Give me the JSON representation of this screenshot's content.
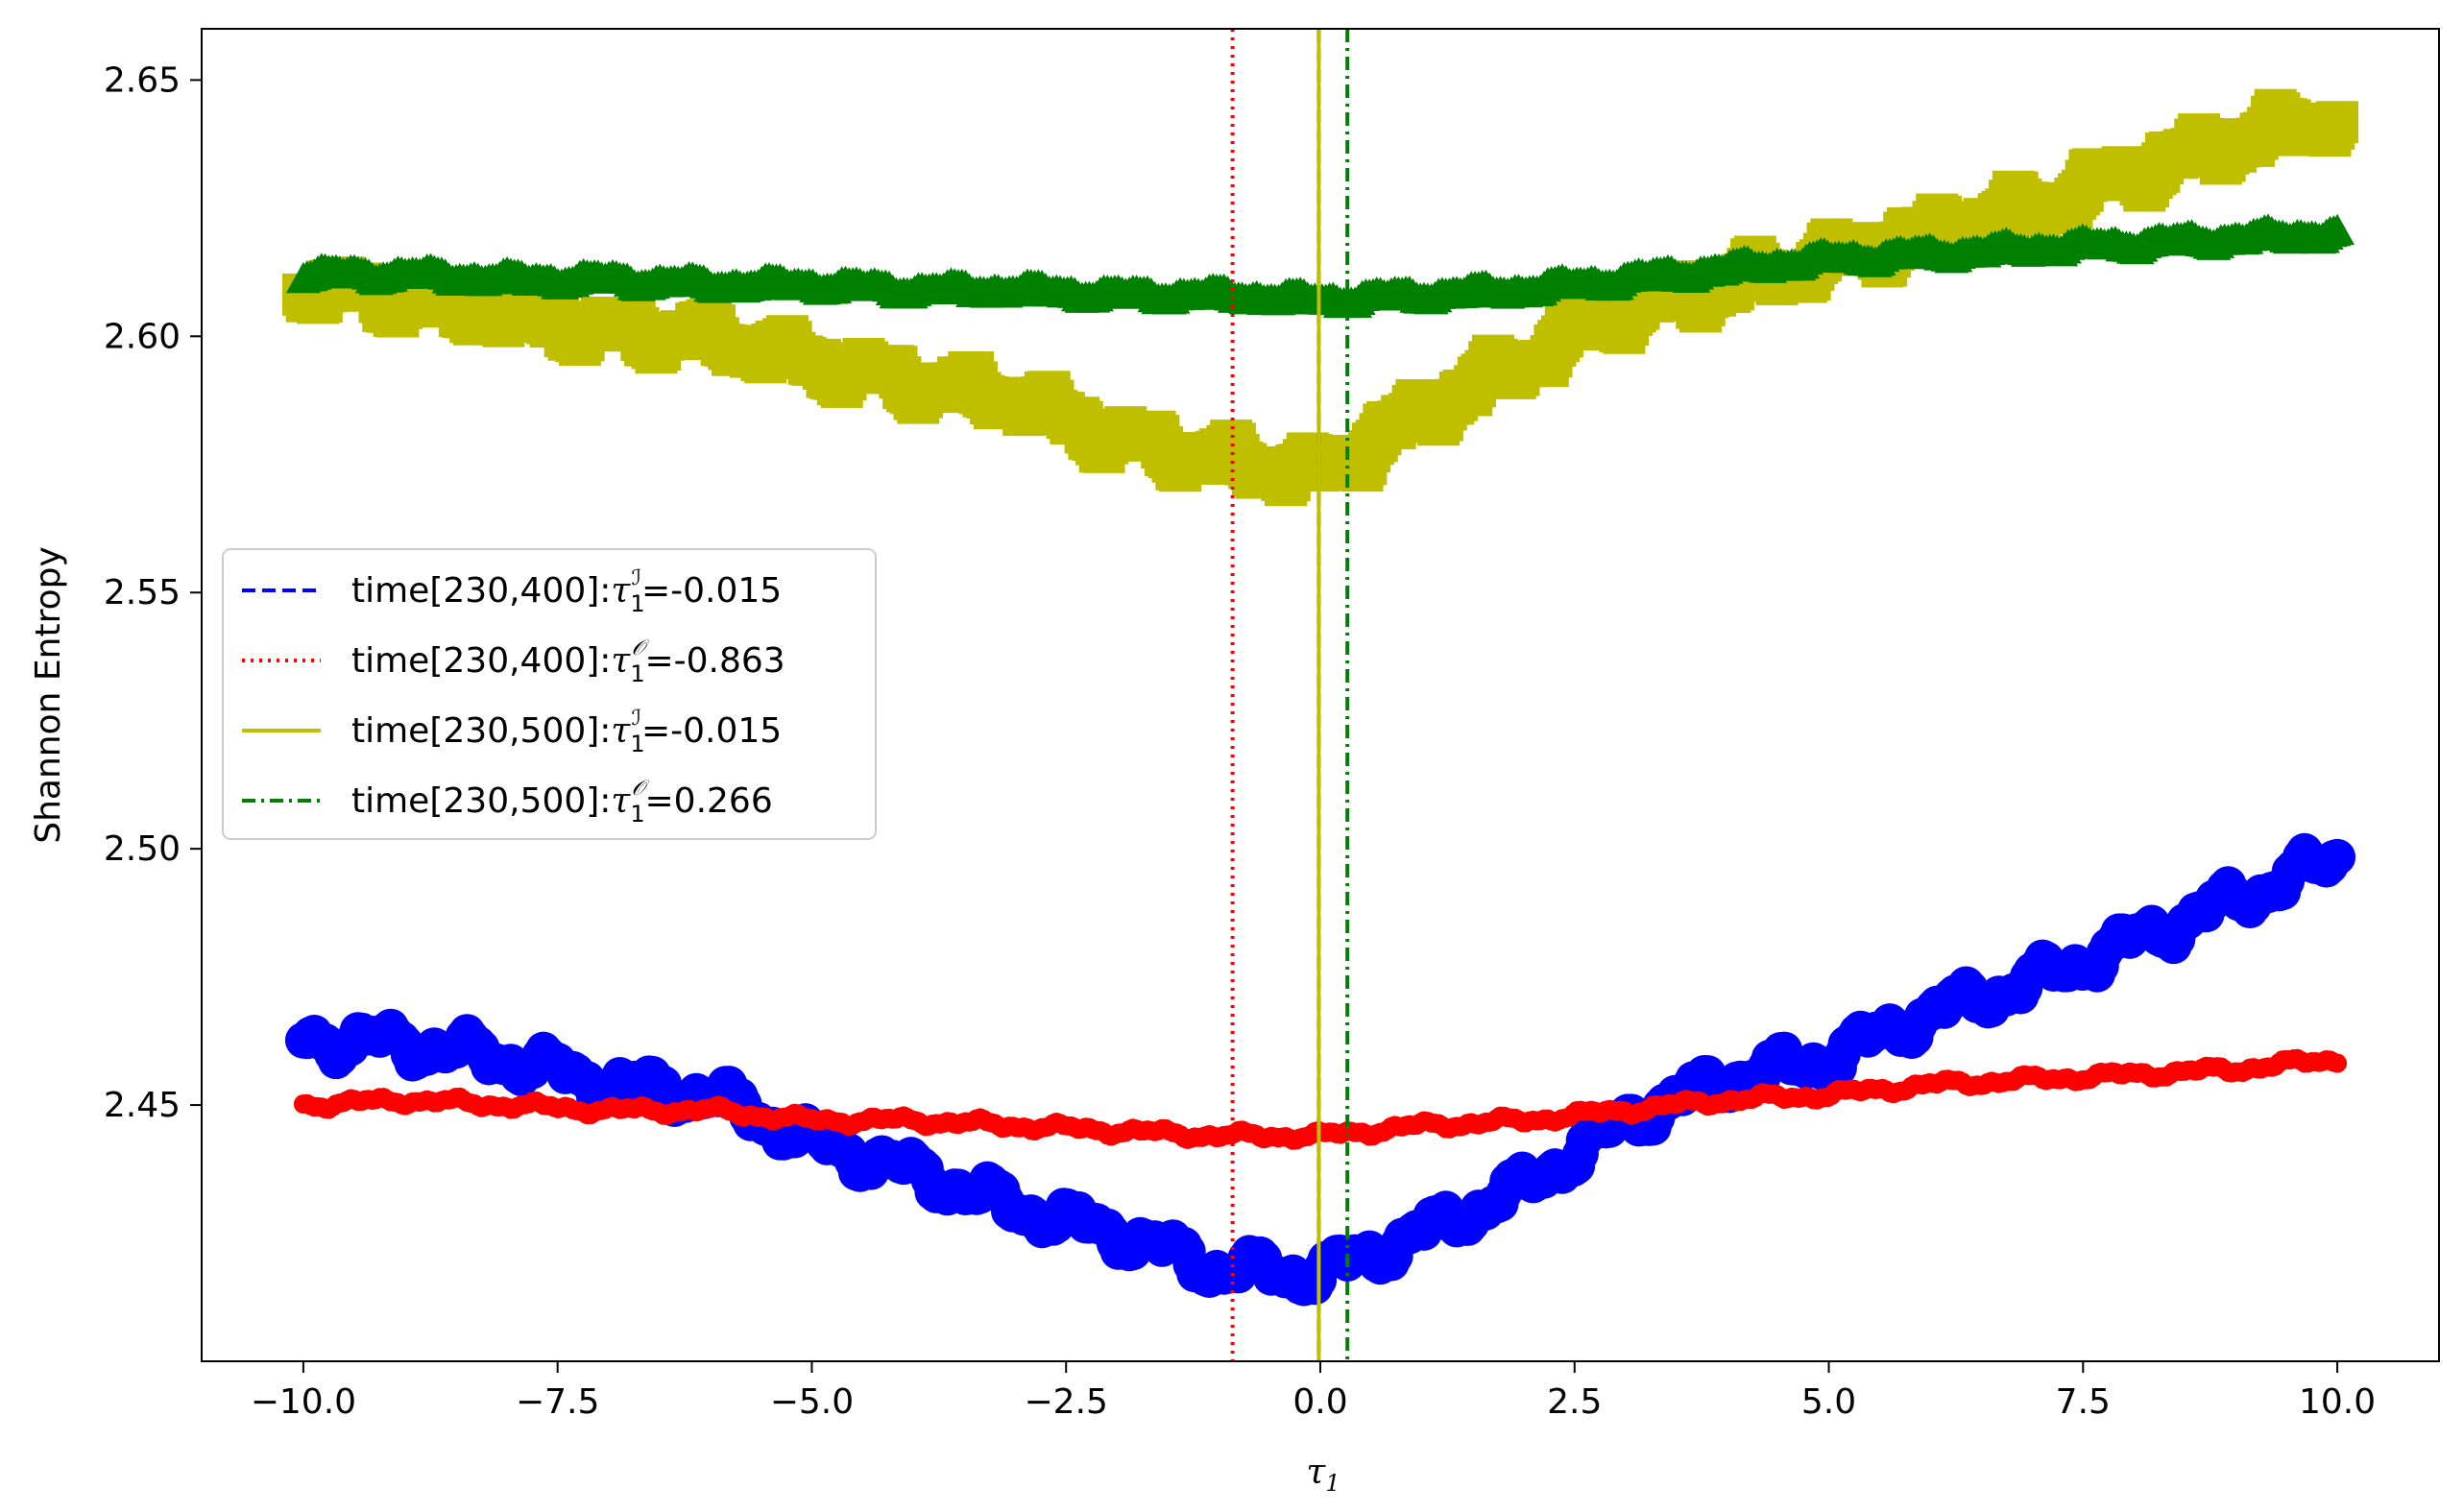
{
  "chart_data": {
    "type": "scatter",
    "title": "",
    "xlabel": "τ",
    "xlabel_sub": "1",
    "ylabel": "Shannon Entropy",
    "xlim": [
      -11.0,
      11.0
    ],
    "ylim": [
      2.4,
      2.66
    ],
    "xticks": [
      -10.0,
      -7.5,
      -5.0,
      -2.5,
      0.0,
      2.5,
      5.0,
      7.5,
      10.0
    ],
    "xtick_labels": [
      "−10.0",
      "−7.5",
      "−5.0",
      "−2.5",
      "0.0",
      "2.5",
      "5.0",
      "7.5",
      "10.0"
    ],
    "yticks": [
      2.45,
      2.5,
      2.55,
      2.6,
      2.65
    ],
    "ytick_labels": [
      "2.45",
      "2.50",
      "2.55",
      "2.60",
      "2.65"
    ],
    "grid": false,
    "legend_position": "center-left",
    "series": [
      {
        "name": "blue-circles",
        "marker": "circle",
        "color": "#0000ff",
        "x": [
          -10,
          -9,
          -8,
          -7,
          -6,
          -5,
          -4,
          -3,
          -2,
          -1,
          0,
          1,
          2,
          3,
          4,
          5,
          6,
          7,
          8,
          9,
          10
        ],
        "values": [
          2.463,
          2.462,
          2.459,
          2.454,
          2.452,
          2.443,
          2.437,
          2.43,
          2.425,
          2.418,
          2.417,
          2.425,
          2.434,
          2.447,
          2.455,
          2.459,
          2.468,
          2.474,
          2.482,
          2.49,
          2.498
        ]
      },
      {
        "name": "red-circles",
        "marker": "circle",
        "color": "#ff0000",
        "x": [
          -10,
          -9,
          -8,
          -7,
          -6,
          -5,
          -4,
          -3,
          -2,
          -1,
          0,
          1,
          2,
          3,
          4,
          5,
          6,
          7,
          8,
          9,
          10
        ],
        "values": [
          2.45,
          2.451,
          2.45,
          2.449,
          2.449,
          2.447,
          2.447,
          2.446,
          2.445,
          2.444,
          2.444,
          2.446,
          2.447,
          2.449,
          2.451,
          2.452,
          2.454,
          2.455,
          2.456,
          2.457,
          2.459
        ]
      },
      {
        "name": "yellow-squares",
        "marker": "square",
        "color": "#bfbf00",
        "x": [
          -10,
          -9,
          -8,
          -7,
          -6,
          -5,
          -4,
          -3,
          -2,
          -1,
          0,
          1,
          2,
          3,
          4,
          5,
          6,
          7,
          8,
          9,
          10
        ],
        "values": [
          2.61,
          2.607,
          2.604,
          2.601,
          2.6,
          2.595,
          2.591,
          2.588,
          2.58,
          2.576,
          2.573,
          2.585,
          2.595,
          2.605,
          2.61,
          2.615,
          2.62,
          2.625,
          2.632,
          2.638,
          2.643
        ]
      },
      {
        "name": "green-triangles",
        "marker": "triangle",
        "color": "#008000",
        "x": [
          -10,
          -9,
          -8,
          -7,
          -6,
          -5,
          -4,
          -3,
          -2,
          -1,
          0,
          1,
          2,
          3,
          4,
          5,
          6,
          7,
          8,
          9,
          10
        ],
        "values": [
          2.612,
          2.612,
          2.611,
          2.611,
          2.61,
          2.61,
          2.609,
          2.609,
          2.608,
          2.608,
          2.607,
          2.608,
          2.609,
          2.611,
          2.613,
          2.615,
          2.616,
          2.617,
          2.618,
          2.619,
          2.62
        ]
      }
    ],
    "vlines": [
      {
        "name": "time[230,400]:τ1^I=-0.015",
        "x": -0.015,
        "color": "#0000ff",
        "style": "dashed"
      },
      {
        "name": "time[230,400]:τ1^O=-0.863",
        "x": -0.863,
        "color": "#ff0000",
        "style": "dotted"
      },
      {
        "name": "time[230,500]:τ1^I=-0.015",
        "x": -0.015,
        "color": "#bfbf00",
        "style": "solid"
      },
      {
        "name": "time[230,500]:τ1^O=0.266",
        "x": 0.266,
        "color": "#008000",
        "style": "dashdot"
      }
    ],
    "legend": [
      {
        "prefix": "time[230,400]:",
        "tau": "τ",
        "sub": "1",
        "sup": "ℐ",
        "suffix": "=-0.015",
        "color": "#0000ff",
        "style": "dashed"
      },
      {
        "prefix": "time[230,400]:",
        "tau": "τ",
        "sub": "1",
        "sup": "𝒪",
        "suffix": "=-0.863",
        "color": "#ff0000",
        "style": "dotted"
      },
      {
        "prefix": "time[230,500]:",
        "tau": "τ",
        "sub": "1",
        "sup": "ℐ",
        "suffix": "=-0.015",
        "color": "#bfbf00",
        "style": "solid"
      },
      {
        "prefix": "time[230,500]:",
        "tau": "τ",
        "sub": "1",
        "sup": "𝒪",
        "suffix": "=0.266",
        "color": "#008000",
        "style": "dashdot"
      }
    ]
  }
}
